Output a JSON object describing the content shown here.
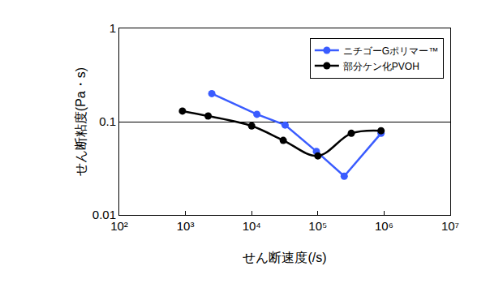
{
  "chart_data": {
    "type": "line",
    "x_label": "せん断速度(/s)",
    "y_label": "せん断粘度(Pa・s)",
    "log": true,
    "grid": "y",
    "legend": "upper right",
    "xlim": [
      100,
      10000000
    ],
    "ylim": [
      0.01,
      1
    ],
    "xticks": [
      {
        "value": 100,
        "label": "10²"
      },
      {
        "value": 1000,
        "label": "10³"
      },
      {
        "value": 10000,
        "label": "10⁴"
      },
      {
        "value": 100000,
        "label": "10⁵"
      },
      {
        "value": 1000000,
        "label": "10⁶"
      },
      {
        "value": 10000000,
        "label": "10⁷"
      }
    ],
    "yticks": [
      0.01,
      0.1,
      1
    ],
    "series": [
      {
        "name": "ニチゴーGポリマー™",
        "color": "#3a5cff",
        "marker": "circle",
        "line_style": "solid",
        "x": [
          2500,
          12000,
          32000,
          95000,
          250000,
          900000
        ],
        "values": [
          0.2,
          0.12,
          0.092,
          0.048,
          0.026,
          0.075
        ]
      },
      {
        "name": "部分ケン化PVOH",
        "color": "#000000",
        "marker": "circle",
        "line_style": "smooth",
        "x": [
          900,
          2200,
          10000,
          30000,
          100000,
          320000,
          900000
        ],
        "values": [
          0.13,
          0.115,
          0.09,
          0.063,
          0.043,
          0.075,
          0.08
        ]
      }
    ]
  }
}
